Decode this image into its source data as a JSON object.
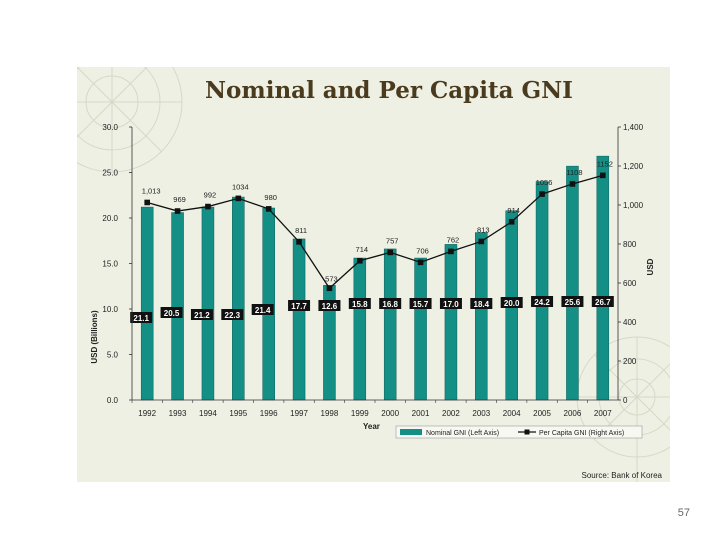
{
  "page_number": "57",
  "colors": {
    "bar": "#138f86",
    "bar_edge": "#0b5e58",
    "line": "#111111",
    "label_box": "#111111",
    "title": "#4a3b1e",
    "panel": "#eef0e4"
  },
  "chart_data": {
    "type": "bar",
    "title": "Nominal and Per Capita GNI",
    "xlabel": "Year",
    "ylabel_left": "USD (Billions)",
    "ylabel_right": "USD",
    "ylim_left": [
      0,
      30
    ],
    "ylim_right": [
      0,
      1400
    ],
    "yticks_left": [
      "0.0",
      "5.0",
      "10.0",
      "15.0",
      "20.0",
      "25.0",
      "30.0"
    ],
    "yticks_right": [
      "0",
      "200",
      "400",
      "600",
      "800",
      "1,000",
      "1,200",
      "1,400"
    ],
    "categories": [
      "1992",
      "1993",
      "1994",
      "1995",
      "1996",
      "1997",
      "1998",
      "1999",
      "2000",
      "2001",
      "2002",
      "2003",
      "2004",
      "2005",
      "2006",
      "2007"
    ],
    "series": [
      {
        "name": "Nominal GNI (Left Axis)",
        "type": "bar",
        "axis": "left",
        "values": [
          21.1,
          20.5,
          21.2,
          22.3,
          21.4,
          17.7,
          12.6,
          15.8,
          16.8,
          15.7,
          17.0,
          18.4,
          20.0,
          24.2,
          25.6,
          26.7
        ],
        "labels": [
          "21.1",
          "20.5",
          "21.2",
          "22.3",
          "21.4",
          "17.7",
          "12.6",
          "15.8",
          "16.8",
          "15.7",
          "17.0",
          "18.4",
          "20.0",
          "24.2",
          "25.6",
          "26.7"
        ],
        "bar_heights": [
          21.2,
          20.6,
          21.2,
          22.3,
          21.1,
          17.7,
          12.6,
          15.6,
          16.6,
          15.6,
          17.1,
          18.4,
          20.8,
          24.0,
          25.7,
          26.8
        ]
      },
      {
        "name": "Per Capita GNI (Right Axis)",
        "type": "line",
        "axis": "right",
        "values": [
          1013,
          969,
          992,
          1034,
          980,
          811,
          573,
          714,
          757,
          706,
          762,
          813,
          914,
          1056,
          1108,
          1152
        ],
        "labels": [
          "1,013",
          "969",
          "992",
          "1034",
          "980",
          "811",
          "573",
          "714",
          "757",
          "706",
          "762",
          "813",
          "914",
          "1056",
          "1108",
          "1152"
        ]
      }
    ],
    "legend": {
      "position": "bottom-right",
      "items": [
        "Nominal GNI (Left Axis)",
        "Per Capita GNI (Right Axis)"
      ]
    },
    "source": "Source: Bank of Korea"
  }
}
